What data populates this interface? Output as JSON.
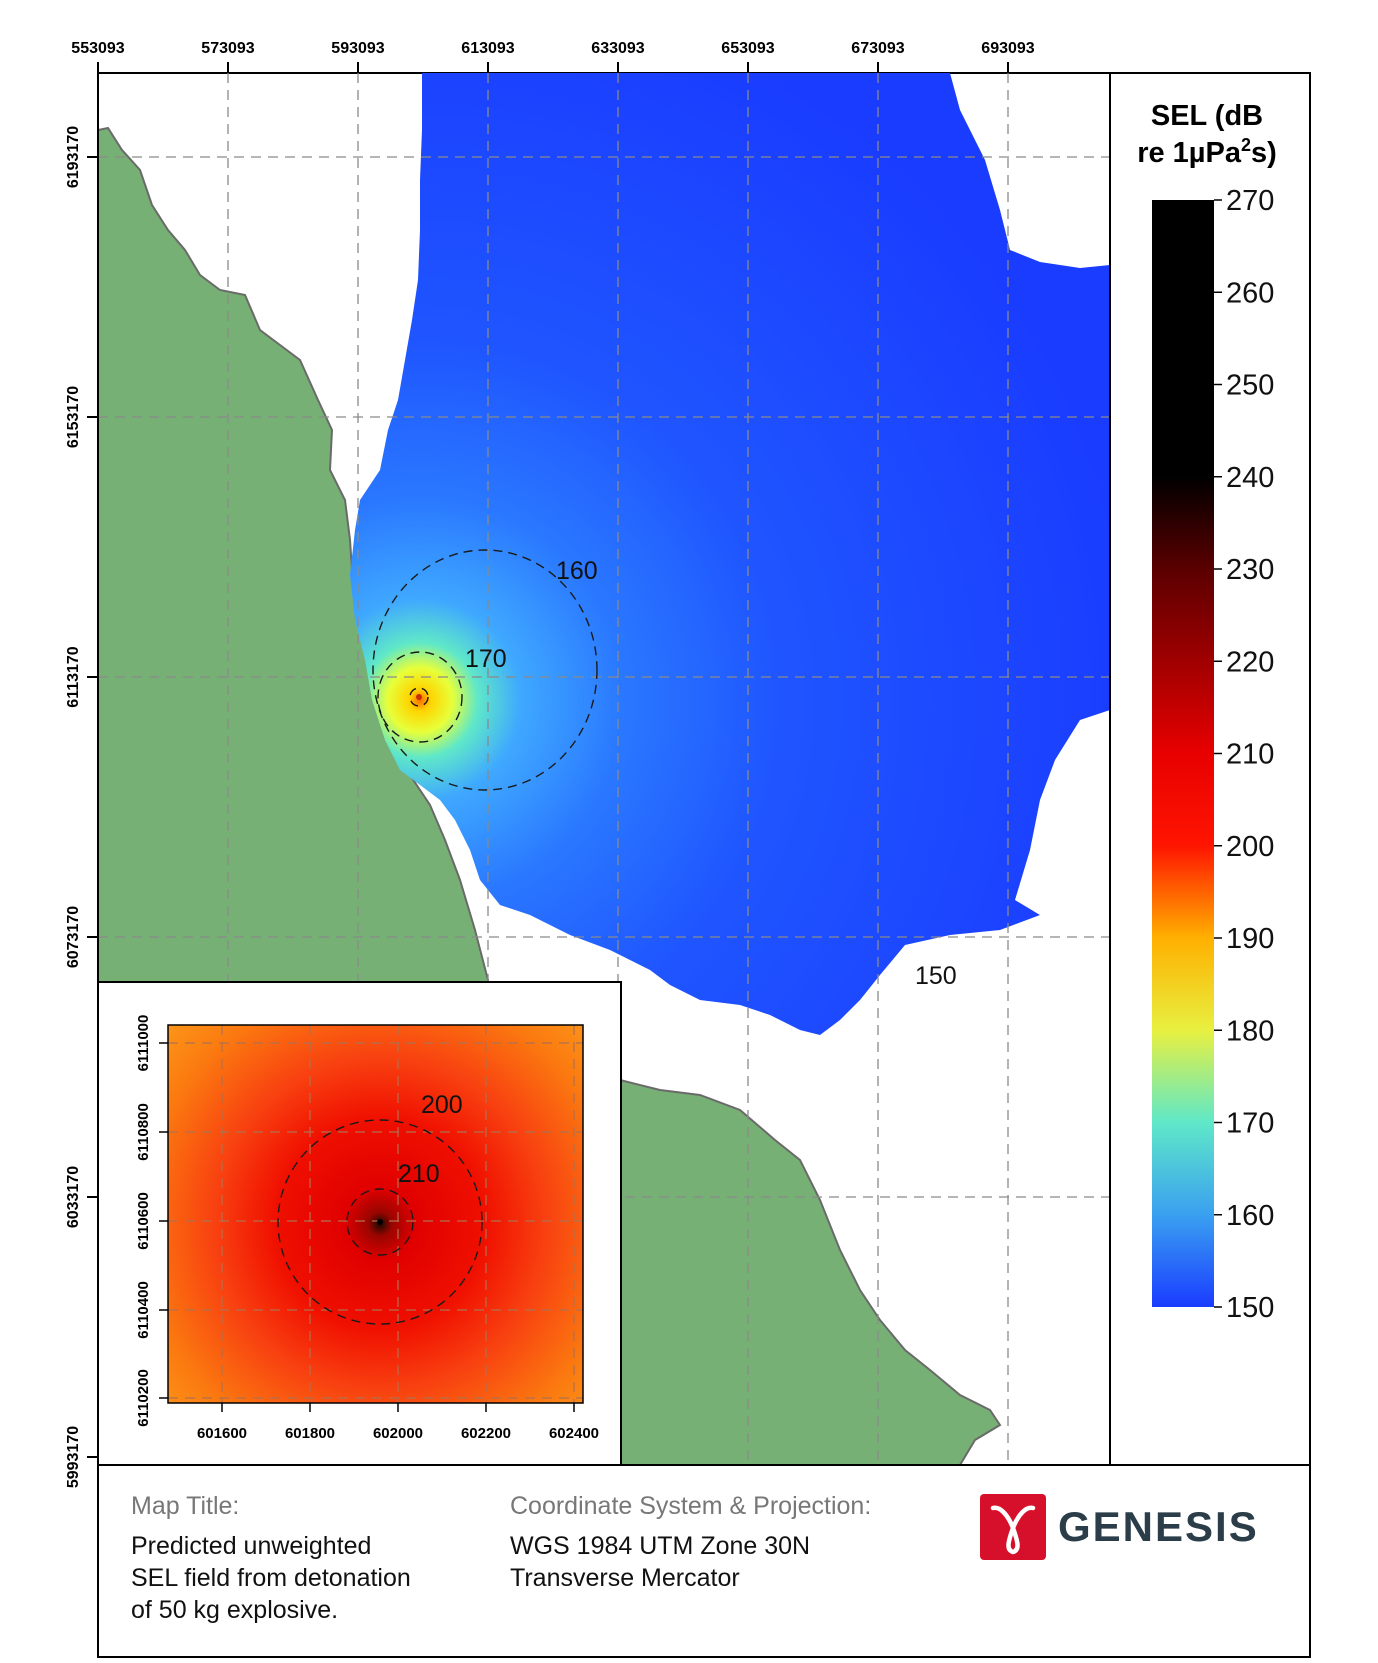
{
  "map": {
    "x_ticks": [
      "553093",
      "573093",
      "593093",
      "613093",
      "633093",
      "653093",
      "673093",
      "693093"
    ],
    "y_ticks": [
      "6193170",
      "6153170",
      "6113170",
      "6073170",
      "6033170",
      "5993170"
    ],
    "contours": [
      {
        "label": "160"
      },
      {
        "label": "170"
      },
      {
        "label": "150"
      }
    ],
    "colors": {
      "land": "#77b074",
      "coast": "#6a6a6a",
      "field_low": "#1a3cff",
      "field_high": "#000000"
    }
  },
  "legend": {
    "title_line1": "SEL (dB",
    "title_line2_prefix": "re 1µPa",
    "title_sup": "2",
    "title_line2_suffix": "s)",
    "ticks": [
      "270",
      "260",
      "250",
      "240",
      "230",
      "220",
      "210",
      "200",
      "190",
      "180",
      "170",
      "160",
      "150"
    ],
    "range": [
      150,
      270
    ]
  },
  "inset": {
    "x_ticks": [
      "601600",
      "601800",
      "602000",
      "602200",
      "602400"
    ],
    "y_ticks": [
      "6111000",
      "6110800",
      "6110600",
      "6110400",
      "6110200"
    ],
    "contours": [
      {
        "label": "200"
      },
      {
        "label": "210"
      }
    ]
  },
  "footer": {
    "map_title_heading": "Map Title:",
    "map_title_lines": [
      "Predicted unweighted",
      "SEL field from detonation",
      "of 50 kg explosive."
    ],
    "crs_heading": "Coordinate System & Projection:",
    "crs_lines": [
      "WGS 1984 UTM Zone 30N",
      "Transverse Mercator"
    ],
    "logo_text": "GENESIS",
    "logo_color": "#d6102a"
  }
}
